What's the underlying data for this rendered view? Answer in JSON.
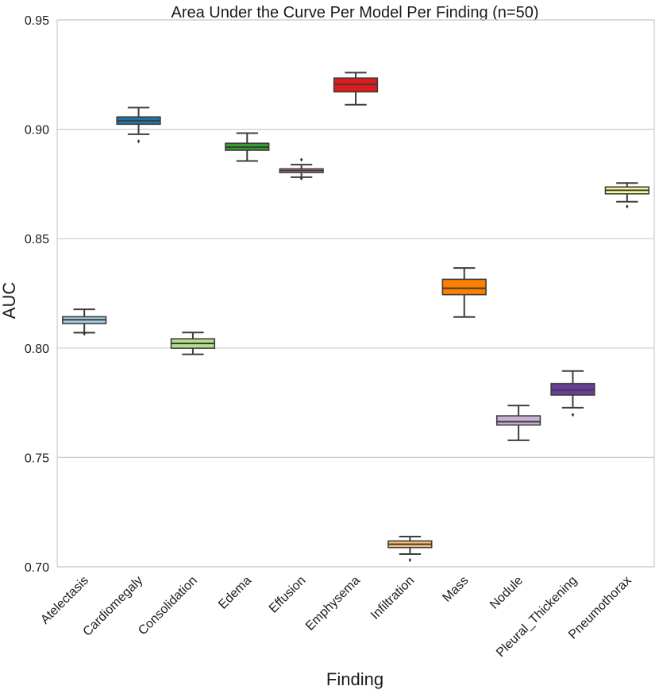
{
  "chart_data": {
    "type": "box",
    "title": "Area Under the Curve Per Model Per Finding (n=50)",
    "xlabel": "Finding",
    "ylabel": "AUC",
    "ylim": [
      0.7,
      0.95
    ],
    "yticks": [
      "0.70",
      "0.75",
      "0.80",
      "0.85",
      "0.90",
      "0.95"
    ],
    "grid": true,
    "categories": [
      "Atelectasis",
      "Cardiomegaly",
      "Consolidation",
      "Edema",
      "Effusion",
      "Emphysema",
      "Infiltration",
      "Mass",
      "Nodule",
      "Pleural_Thickening",
      "Pneumothorax"
    ],
    "colors": [
      "#a6cee3",
      "#1f78b4",
      "#b2df8a",
      "#33a02c",
      "#fb9a99",
      "#e31a1c",
      "#fdbf6f",
      "#ff7f00",
      "#cab2d6",
      "#6a3d9a",
      "#ffff99"
    ],
    "boxes": [
      {
        "name": "Atelectasis",
        "whislo": 0.807,
        "q1": 0.8112,
        "median": 0.8129,
        "q3": 0.8143,
        "whishi": 0.8177,
        "fliers": [
          0.8065
        ]
      },
      {
        "name": "Cardiomegaly",
        "whislo": 0.8977,
        "q1": 0.9023,
        "median": 0.9039,
        "q3": 0.9056,
        "whishi": 0.9099,
        "fliers": [
          0.8945
        ]
      },
      {
        "name": "Consolidation",
        "whislo": 0.7971,
        "q1": 0.7999,
        "median": 0.8021,
        "q3": 0.8042,
        "whishi": 0.8071,
        "fliers": []
      },
      {
        "name": "Edema",
        "whislo": 0.8855,
        "q1": 0.8904,
        "median": 0.8918,
        "q3": 0.8936,
        "whishi": 0.8982,
        "fliers": []
      },
      {
        "name": "Effusion",
        "whislo": 0.8781,
        "q1": 0.8802,
        "median": 0.8811,
        "q3": 0.8819,
        "whishi": 0.8838,
        "fliers": [
          0.8775,
          0.8861
        ]
      },
      {
        "name": "Emphysema",
        "whislo": 0.9112,
        "q1": 0.9171,
        "median": 0.9205,
        "q3": 0.9234,
        "whishi": 0.9259,
        "fliers": []
      },
      {
        "name": "Infiltration",
        "whislo": 0.7058,
        "q1": 0.7088,
        "median": 0.7103,
        "q3": 0.7118,
        "whishi": 0.7138,
        "fliers": [
          0.7031
        ]
      },
      {
        "name": "Mass",
        "whislo": 0.8142,
        "q1": 0.8244,
        "median": 0.8273,
        "q3": 0.8314,
        "whishi": 0.8366,
        "fliers": []
      },
      {
        "name": "Nodule",
        "whislo": 0.7578,
        "q1": 0.7648,
        "median": 0.7663,
        "q3": 0.769,
        "whishi": 0.7737,
        "fliers": []
      },
      {
        "name": "Pleural_Thickening",
        "whislo": 0.7727,
        "q1": 0.7785,
        "median": 0.7808,
        "q3": 0.7837,
        "whishi": 0.7895,
        "fliers": [
          0.7695
        ]
      },
      {
        "name": "Pneumothorax",
        "whislo": 0.8669,
        "q1": 0.8705,
        "median": 0.8721,
        "q3": 0.8736,
        "whishi": 0.8754,
        "fliers": [
          0.8647
        ]
      }
    ]
  }
}
